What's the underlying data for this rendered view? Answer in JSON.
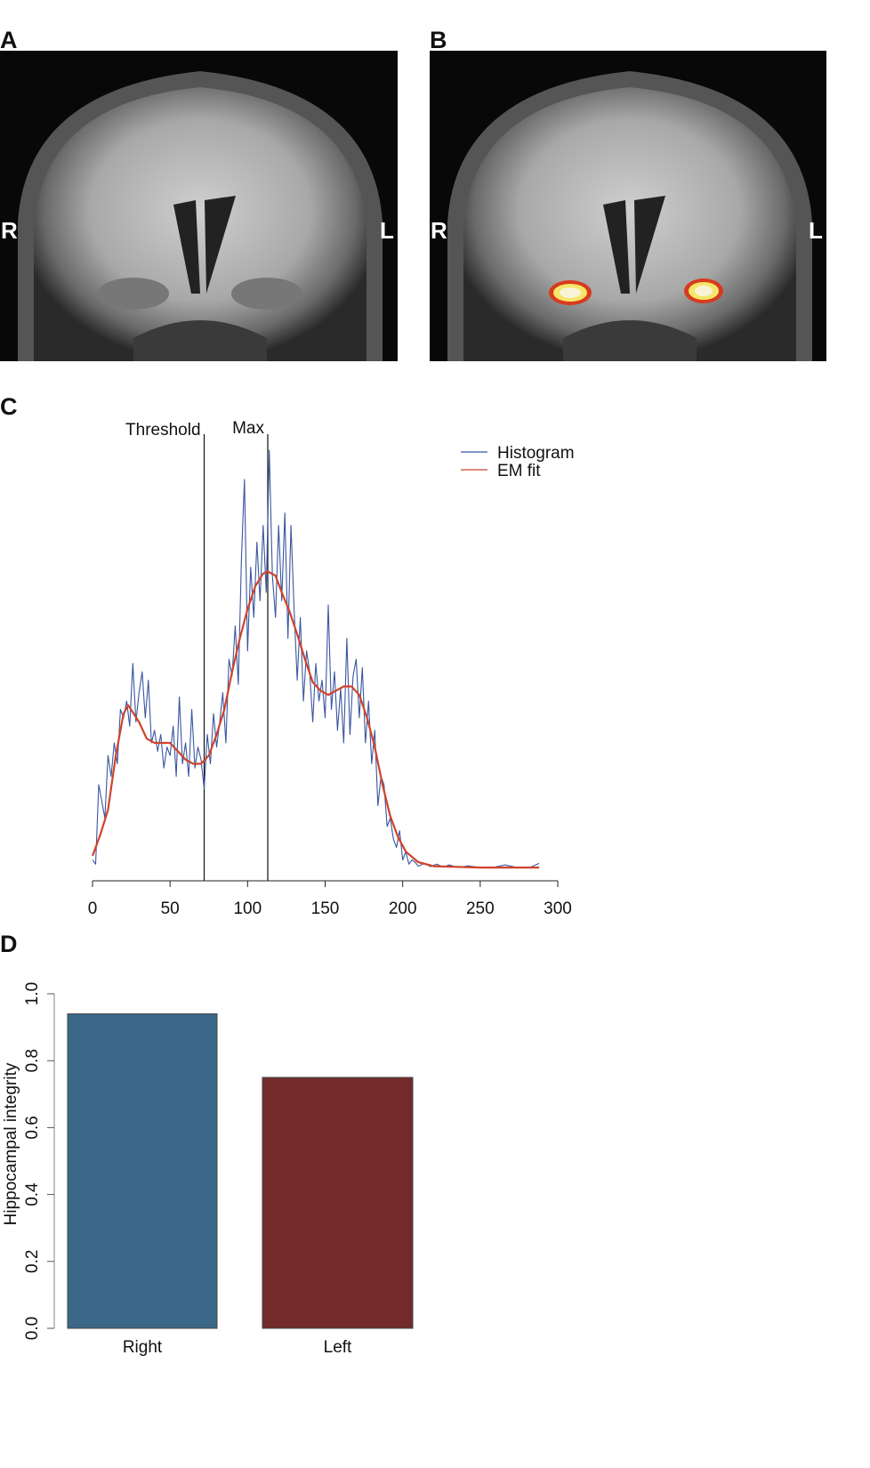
{
  "panels": {
    "a": {
      "label": "A",
      "right": "R",
      "left": "L"
    },
    "b": {
      "label": "B",
      "right": "R",
      "left": "L"
    },
    "c": {
      "label": "C"
    },
    "d": {
      "label": "D"
    }
  },
  "colors": {
    "histogram": "#3a56a0",
    "em_fit": "#d0432a",
    "right_bar": "#3b6888",
    "left_bar": "#722a2a",
    "overlay_outer": "#d83a1e",
    "overlay_inner": "#f5e66a"
  },
  "chart_data": [
    {
      "type": "line",
      "xlim": [
        0,
        300
      ],
      "xticks": [
        0,
        50,
        100,
        150,
        200,
        250,
        300
      ],
      "yaxis_shown": false,
      "grid": false,
      "legend_position": "top-right",
      "annotations": [
        {
          "label": "Threshold",
          "x": 72
        },
        {
          "label": "Max",
          "x": 113
        }
      ],
      "series": [
        {
          "name": "Histogram",
          "x": [
            0,
            2,
            4,
            6,
            8,
            10,
            12,
            14,
            16,
            18,
            20,
            22,
            24,
            26,
            28,
            30,
            32,
            34,
            36,
            38,
            40,
            42,
            44,
            46,
            48,
            50,
            52,
            54,
            56,
            58,
            60,
            62,
            64,
            66,
            68,
            70,
            72,
            74,
            76,
            78,
            80,
            82,
            84,
            86,
            88,
            90,
            92,
            94,
            96,
            98,
            100,
            102,
            104,
            106,
            108,
            110,
            112,
            114,
            116,
            118,
            120,
            122,
            124,
            126,
            128,
            130,
            132,
            134,
            136,
            138,
            140,
            142,
            144,
            146,
            148,
            150,
            152,
            154,
            156,
            158,
            160,
            162,
            164,
            166,
            168,
            170,
            172,
            174,
            176,
            178,
            180,
            182,
            184,
            186,
            188,
            190,
            192,
            194,
            196,
            198,
            200,
            202,
            204,
            206,
            208,
            210,
            214,
            218,
            222,
            226,
            230,
            236,
            242,
            250,
            258,
            266,
            274,
            282,
            288
          ],
          "y": [
            0.02,
            0.01,
            0.2,
            0.16,
            0.12,
            0.27,
            0.22,
            0.3,
            0.25,
            0.38,
            0.36,
            0.4,
            0.34,
            0.49,
            0.35,
            0.42,
            0.47,
            0.36,
            0.45,
            0.3,
            0.33,
            0.28,
            0.32,
            0.24,
            0.29,
            0.27,
            0.34,
            0.22,
            0.41,
            0.25,
            0.3,
            0.22,
            0.38,
            0.24,
            0.29,
            0.26,
            0.19,
            0.32,
            0.25,
            0.37,
            0.29,
            0.35,
            0.42,
            0.3,
            0.5,
            0.46,
            0.58,
            0.44,
            0.74,
            0.93,
            0.52,
            0.72,
            0.6,
            0.78,
            0.64,
            0.82,
            0.66,
            1.0,
            0.7,
            0.6,
            0.82,
            0.64,
            0.85,
            0.55,
            0.82,
            0.62,
            0.45,
            0.6,
            0.4,
            0.52,
            0.47,
            0.35,
            0.49,
            0.4,
            0.45,
            0.36,
            0.63,
            0.38,
            0.47,
            0.33,
            0.43,
            0.3,
            0.55,
            0.32,
            0.46,
            0.5,
            0.36,
            0.48,
            0.3,
            0.4,
            0.25,
            0.33,
            0.15,
            0.22,
            0.2,
            0.1,
            0.12,
            0.07,
            0.05,
            0.09,
            0.02,
            0.04,
            0.01,
            0.02,
            0.015,
            0.005,
            0.012,
            0.004,
            0.01,
            0.003,
            0.008,
            0.002,
            0.006,
            0.002,
            0.002,
            0.008,
            0.002,
            0.002,
            0.012
          ]
        },
        {
          "name": "EM fit",
          "x": [
            0,
            5,
            10,
            15,
            20,
            23,
            30,
            35,
            40,
            45,
            50,
            55,
            60,
            65,
            70,
            75,
            80,
            85,
            90,
            95,
            100,
            105,
            110,
            113,
            118,
            122,
            127,
            132,
            137,
            142,
            147,
            152,
            157,
            162,
            167,
            172,
            177,
            182,
            187,
            192,
            197,
            202,
            210,
            220,
            250,
            288
          ],
          "y": [
            0.03,
            0.08,
            0.14,
            0.27,
            0.37,
            0.39,
            0.35,
            0.31,
            0.3,
            0.3,
            0.3,
            0.28,
            0.26,
            0.25,
            0.25,
            0.27,
            0.32,
            0.38,
            0.47,
            0.55,
            0.62,
            0.675,
            0.705,
            0.71,
            0.7,
            0.66,
            0.615,
            0.56,
            0.5,
            0.445,
            0.425,
            0.415,
            0.425,
            0.435,
            0.435,
            0.415,
            0.36,
            0.29,
            0.2,
            0.125,
            0.075,
            0.04,
            0.015,
            0.005,
            0.002,
            0.002
          ]
        }
      ]
    },
    {
      "type": "bar",
      "categories": [
        "Right",
        "Left"
      ],
      "values": [
        0.94,
        0.75
      ],
      "ylabel": "Hippocampal integrity",
      "ylim": [
        0,
        1.0
      ],
      "yticks": [
        "0.0",
        "0.2",
        "0.4",
        "0.6",
        "0.8",
        "1.0"
      ],
      "grid": false
    }
  ]
}
